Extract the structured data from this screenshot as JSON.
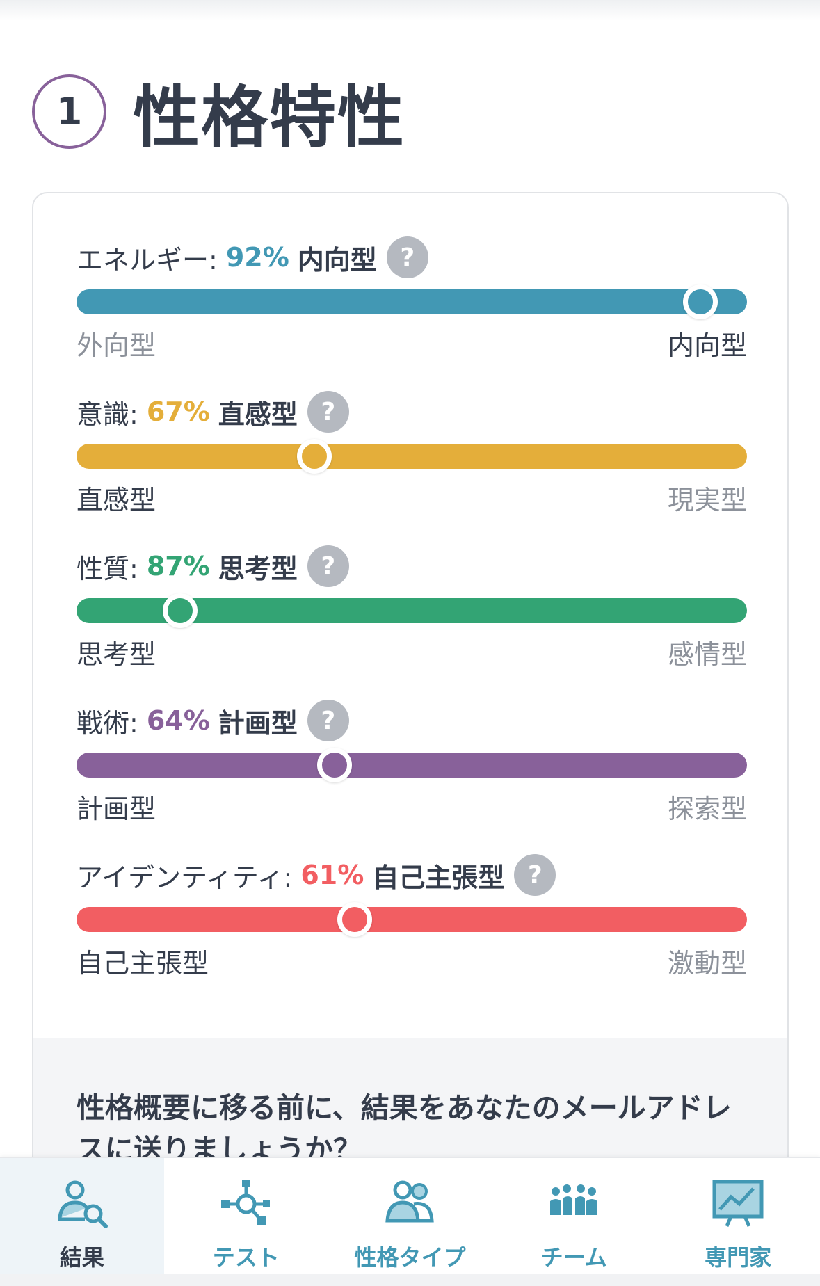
{
  "section": {
    "number": "1",
    "title": "性格特性"
  },
  "traits": [
    {
      "label": "エネルギー:",
      "percent": "92%",
      "type": "内向型",
      "help": "?",
      "left": "外向型",
      "right": "内向型",
      "color": "#4298b4",
      "position": 0.93,
      "active_side": "right"
    },
    {
      "label": "意識:",
      "percent": "67%",
      "type": "直感型",
      "help": "?",
      "left": "直感型",
      "right": "現実型",
      "color": "#e4ae3a",
      "position": 0.355,
      "active_side": "left"
    },
    {
      "label": "性質:",
      "percent": "87%",
      "type": "思考型",
      "help": "?",
      "left": "思考型",
      "right": "感情型",
      "color": "#33a474",
      "position": 0.155,
      "active_side": "left"
    },
    {
      "label": "戦術:",
      "percent": "64%",
      "type": "計画型",
      "help": "?",
      "left": "計画型",
      "right": "探索型",
      "color": "#88619a",
      "position": 0.385,
      "active_side": "left"
    },
    {
      "label": "アイデンティティ:",
      "percent": "61%",
      "type": "自己主張型",
      "help": "?",
      "left": "自己主張型",
      "right": "激動型",
      "color": "#f25e62",
      "position": 0.415,
      "active_side": "left"
    }
  ],
  "email_prompt": "性格概要に移る前に、結果をあなたのメールアドレスに送りましょうか？",
  "tabs": [
    {
      "label": "結果",
      "icon": "results-icon",
      "selected": true
    },
    {
      "label": "テスト",
      "icon": "test-icon",
      "selected": false
    },
    {
      "label": "性格タイプ",
      "icon": "personality-types-icon",
      "selected": false
    },
    {
      "label": "チーム",
      "icon": "teams-icon",
      "selected": false
    },
    {
      "label": "専門家",
      "icon": "professionals-icon",
      "selected": false
    }
  ]
}
